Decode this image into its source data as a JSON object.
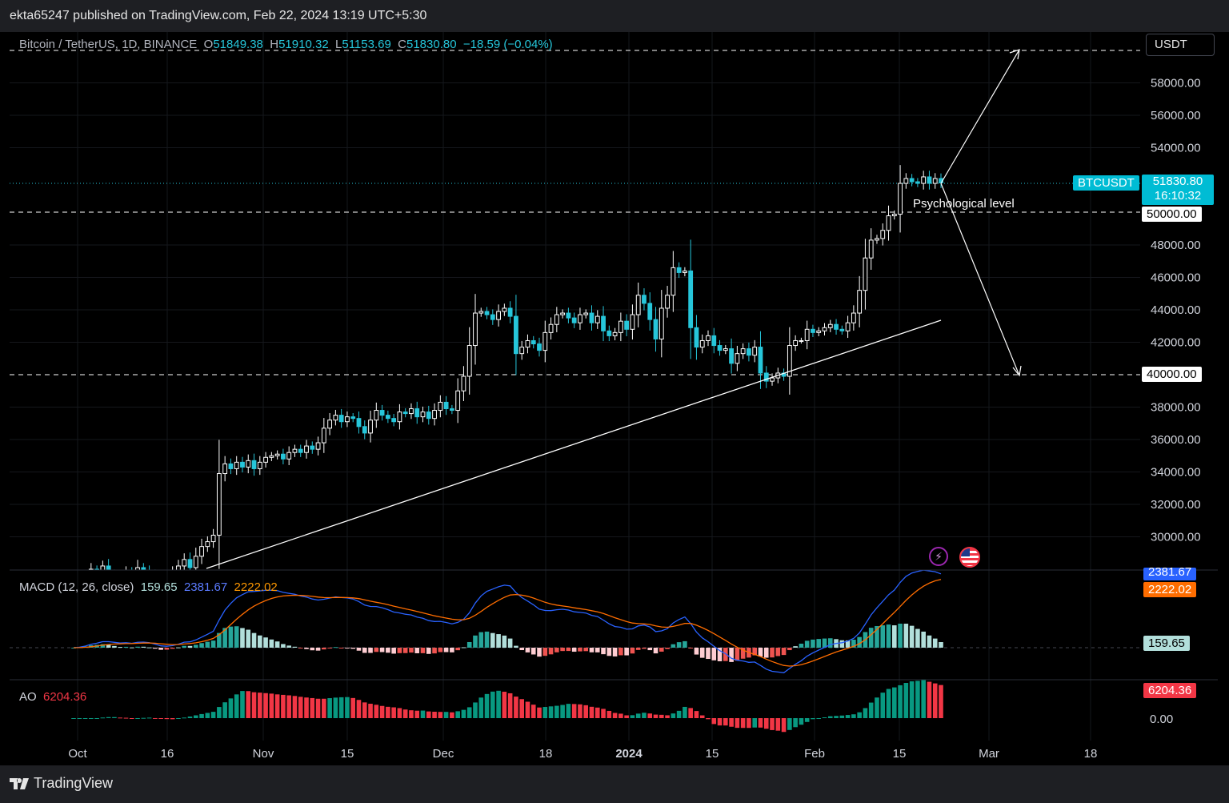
{
  "header": {
    "published_text": "ekta65247 published on TradingView.com, Feb 22, 2024 13:19 UTC+5:30"
  },
  "symbol_legend": {
    "name": "Bitcoin / TetherUS, 1D, BINANCE",
    "o_label": "O",
    "open": "51849.38",
    "h_label": "H",
    "high": "51910.32",
    "l_label": "L",
    "low": "51153.69",
    "c_label": "C",
    "close": "51830.80",
    "change": "−18.59 (−0.04%)"
  },
  "currency_button": "USDT",
  "price_badge": {
    "symbol": "BTCUSDT",
    "price": "51830.80",
    "countdown": "16:10:32"
  },
  "level_labels": {
    "level_50000": "50000.00",
    "level_40000": "40000.00"
  },
  "annotation_text": "Psychological level",
  "macd": {
    "label": "MACD (12, 26, close)",
    "hist": "159.65",
    "macd": "2381.67",
    "signal": "2222.02"
  },
  "ao": {
    "label": "AO",
    "value": "6204.36",
    "zero": "0.00"
  },
  "footer": {
    "brand": "TradingView"
  },
  "colors": {
    "up": "#ffffff",
    "down": "#26c6da",
    "macd_line": "#2962ff",
    "signal_line": "#ff6d00",
    "hist_up": "#26a69a",
    "hist_down": "#ef5350",
    "ao_up": "#089981",
    "ao_down": "#f23645"
  },
  "chart_data": {
    "type": "candlestick",
    "price_ticks": [
      "58000.00",
      "56000.00",
      "54000.00",
      "52000.00",
      "50000.00",
      "48000.00",
      "46000.00",
      "44000.00",
      "42000.00",
      "40000.00",
      "38000.00",
      "36000.00",
      "34000.00",
      "32000.00",
      "30000.00"
    ],
    "x_ticks": [
      "Oct",
      "16",
      "Nov",
      "15",
      "Dec",
      "18",
      "2024",
      "15",
      "Feb",
      "15",
      "Mar",
      "18"
    ],
    "ylim": [
      28000,
      60500
    ],
    "close_series": [
      27100,
      27300,
      27600,
      28000,
      27900,
      28200,
      27700,
      27500,
      27400,
      27800,
      27500,
      28100,
      27900,
      27600,
      27200,
      27000,
      27400,
      27800,
      28200,
      28600,
      28100,
      28800,
      29400,
      29700,
      30100,
      33900,
      34500,
      34200,
      34600,
      34300,
      34700,
      34200,
      34600,
      34900,
      35000,
      35100,
      34800,
      35200,
      35400,
      35200,
      35600,
      35400,
      35800,
      36700,
      37200,
      37500,
      37100,
      37400,
      37300,
      36800,
      36400,
      37200,
      37800,
      37500,
      37300,
      37100,
      37700,
      37600,
      37900,
      37400,
      37700,
      37300,
      37800,
      38300,
      37900,
      37800,
      39000,
      39900,
      41800,
      43800,
      43900,
      43700,
      43400,
      43900,
      44100,
      43600,
      41300,
      41700,
      42100,
      41900,
      41500,
      42600,
      43100,
      43700,
      43800,
      43500,
      43200,
      43700,
      43800,
      43200,
      43600,
      42700,
      42400,
      42600,
      43300,
      42800,
      43700,
      44900,
      44400,
      43400,
      42200,
      44100,
      44900,
      46600,
      46300,
      46400,
      42900,
      41700,
      42100,
      42400,
      41800,
      41500,
      41600,
      40700,
      41300,
      41600,
      41200,
      41700,
      40100,
      39600,
      39800,
      40100,
      39900,
      41800,
      42100,
      42100,
      42800,
      42600,
      42700,
      42900,
      43100,
      42800,
      42700,
      43200,
      43800,
      45200,
      47200,
      48300,
      48400,
      48900,
      49800,
      49900,
      51800,
      52100,
      51900,
      51800,
      52200,
      51800,
      52100,
      51830
    ]
  }
}
